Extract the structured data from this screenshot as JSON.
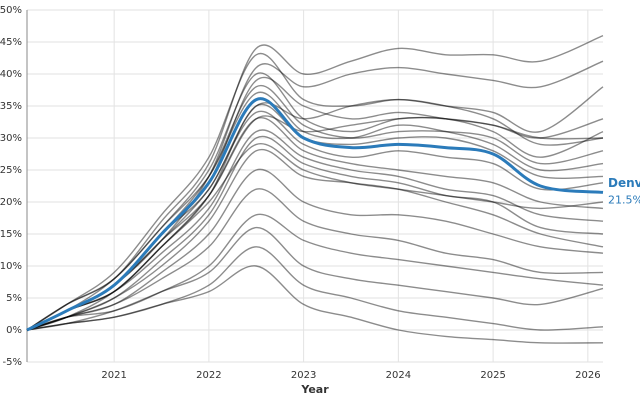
{
  "chart_data": {
    "type": "line",
    "x_label": "Year",
    "xlim": [
      2020.08,
      2026.16
    ],
    "xticks": [
      2021,
      2022,
      2023,
      2024,
      2025,
      2026
    ],
    "ylim": [
      -5,
      50
    ],
    "yticks": [
      {
        "value": -5,
        "label": "-5%"
      },
      {
        "value": 0,
        "label": "0%"
      },
      {
        "value": 5,
        "label": "5%"
      },
      {
        "value": 10,
        "label": "10%"
      },
      {
        "value": 15,
        "label": "15%"
      },
      {
        "value": 20,
        "label": "20%"
      },
      {
        "value": 25,
        "label": "25%"
      },
      {
        "value": 30,
        "label": "30%"
      },
      {
        "value": 35,
        "label": "35%"
      },
      {
        "value": 40,
        "label": "40%"
      },
      {
        "value": 45,
        "label": "45%"
      },
      {
        "value": 50,
        "label": "50%"
      }
    ],
    "grid": true,
    "x": [
      2020.08,
      2020.5,
      2021,
      2021.5,
      2022,
      2022.5,
      2023,
      2023.5,
      2024,
      2024.5,
      2025,
      2025.5,
      2026.16
    ],
    "background_color": "rgba(0,0,0,0.45)",
    "background_series": [
      [
        0,
        4,
        8,
        17,
        26,
        44,
        40,
        42,
        44,
        43,
        43,
        42,
        46
      ],
      [
        0,
        3,
        7,
        14,
        24,
        41,
        38,
        40,
        41,
        40,
        39,
        38,
        42
      ],
      [
        0,
        4,
        9,
        18,
        27,
        43,
        36,
        35,
        36,
        35,
        34,
        31,
        38
      ],
      [
        0,
        3,
        8,
        16,
        25,
        40,
        33,
        31,
        33,
        33,
        32,
        30,
        33
      ],
      [
        0,
        3,
        7,
        15,
        24,
        38,
        32,
        30,
        31,
        31,
        30,
        26,
        28
      ],
      [
        0,
        4,
        8,
        16,
        24,
        37,
        31,
        30,
        32,
        31,
        29,
        25,
        26
      ],
      [
        0,
        3,
        6,
        13,
        21,
        35,
        30,
        29,
        30,
        30,
        28,
        24,
        24
      ],
      [
        0,
        3,
        7,
        14,
        22,
        34,
        29,
        27,
        28,
        27,
        26,
        22,
        23
      ],
      [
        0,
        2,
        6,
        13,
        21,
        33,
        28,
        26,
        25,
        24,
        23,
        20,
        19
      ],
      [
        0,
        3,
        6,
        12,
        19,
        31,
        27,
        25,
        24,
        22,
        21,
        18,
        17
      ],
      [
        0,
        3,
        7,
        14,
        21,
        33,
        31,
        32,
        33,
        33,
        31,
        27,
        31
      ],
      [
        0,
        2,
        5,
        11,
        18,
        30,
        26,
        24,
        23,
        21,
        20,
        16,
        15
      ],
      [
        0,
        2,
        5,
        10,
        17,
        28,
        24,
        23,
        22,
        20,
        18,
        15,
        13
      ],
      [
        0,
        2,
        4,
        9,
        15,
        25,
        20,
        18,
        18,
        17,
        15,
        13,
        12
      ],
      [
        0,
        2,
        4,
        8,
        13,
        22,
        17,
        15,
        14,
        12,
        11,
        9,
        9
      ],
      [
        0,
        2,
        3,
        6,
        10,
        18,
        14,
        12,
        11,
        10,
        9,
        8,
        7
      ],
      [
        0,
        1,
        3,
        6,
        9,
        16,
        10,
        8,
        7,
        6,
        5,
        4,
        6.5
      ],
      [
        0,
        1,
        2,
        4,
        7,
        13,
        7,
        5,
        3,
        2,
        1,
        0,
        0.5
      ],
      [
        0,
        1,
        2,
        4,
        6,
        10,
        4,
        2,
        0,
        -1,
        -1.5,
        -2,
        -2
      ],
      [
        0,
        3,
        7,
        15,
        23,
        39,
        35,
        33,
        34,
        33,
        32,
        30,
        30
      ],
      [
        0,
        3,
        6,
        13,
        20,
        29,
        25,
        23,
        22,
        21,
        20,
        19,
        20
      ],
      [
        0,
        3,
        7,
        15,
        22,
        35,
        33,
        35,
        36,
        35,
        33,
        29,
        30
      ]
    ],
    "series": [
      {
        "name": "Denver",
        "color": "#2b7bba",
        "values": [
          0,
          3,
          7,
          15,
          23,
          36,
          30,
          28.5,
          29,
          28.5,
          27.5,
          22.5,
          21.5
        ],
        "value_labels": [
          null,
          null,
          null,
          null,
          null,
          null,
          null,
          null,
          null,
          null,
          null,
          null,
          "21.5%"
        ]
      }
    ]
  }
}
